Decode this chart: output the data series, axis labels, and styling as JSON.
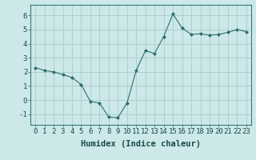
{
  "x": [
    0,
    1,
    2,
    3,
    4,
    5,
    6,
    7,
    8,
    9,
    10,
    11,
    12,
    13,
    14,
    15,
    16,
    17,
    18,
    19,
    20,
    21,
    22,
    23
  ],
  "y": [
    2.3,
    2.1,
    2.0,
    1.8,
    1.6,
    1.1,
    -0.1,
    -0.2,
    -1.2,
    -1.25,
    -0.2,
    2.1,
    3.5,
    3.3,
    4.5,
    6.1,
    5.1,
    4.65,
    4.7,
    4.6,
    4.65,
    4.8,
    5.0,
    4.85
  ],
  "line_color": "#2e6e6e",
  "bg_color": "#cce8e8",
  "grid_color": "#aacccc",
  "xlabel": "Humidex (Indice chaleur)",
  "xlim": [
    -0.5,
    23.5
  ],
  "ylim": [
    -1.75,
    6.75
  ],
  "yticks": [
    -1,
    0,
    1,
    2,
    3,
    4,
    5,
    6
  ],
  "xticks": [
    0,
    1,
    2,
    3,
    4,
    5,
    6,
    7,
    8,
    9,
    10,
    11,
    12,
    13,
    14,
    15,
    16,
    17,
    18,
    19,
    20,
    21,
    22,
    23
  ],
  "xlabel_fontsize": 7.5,
  "tick_fontsize": 6.5
}
